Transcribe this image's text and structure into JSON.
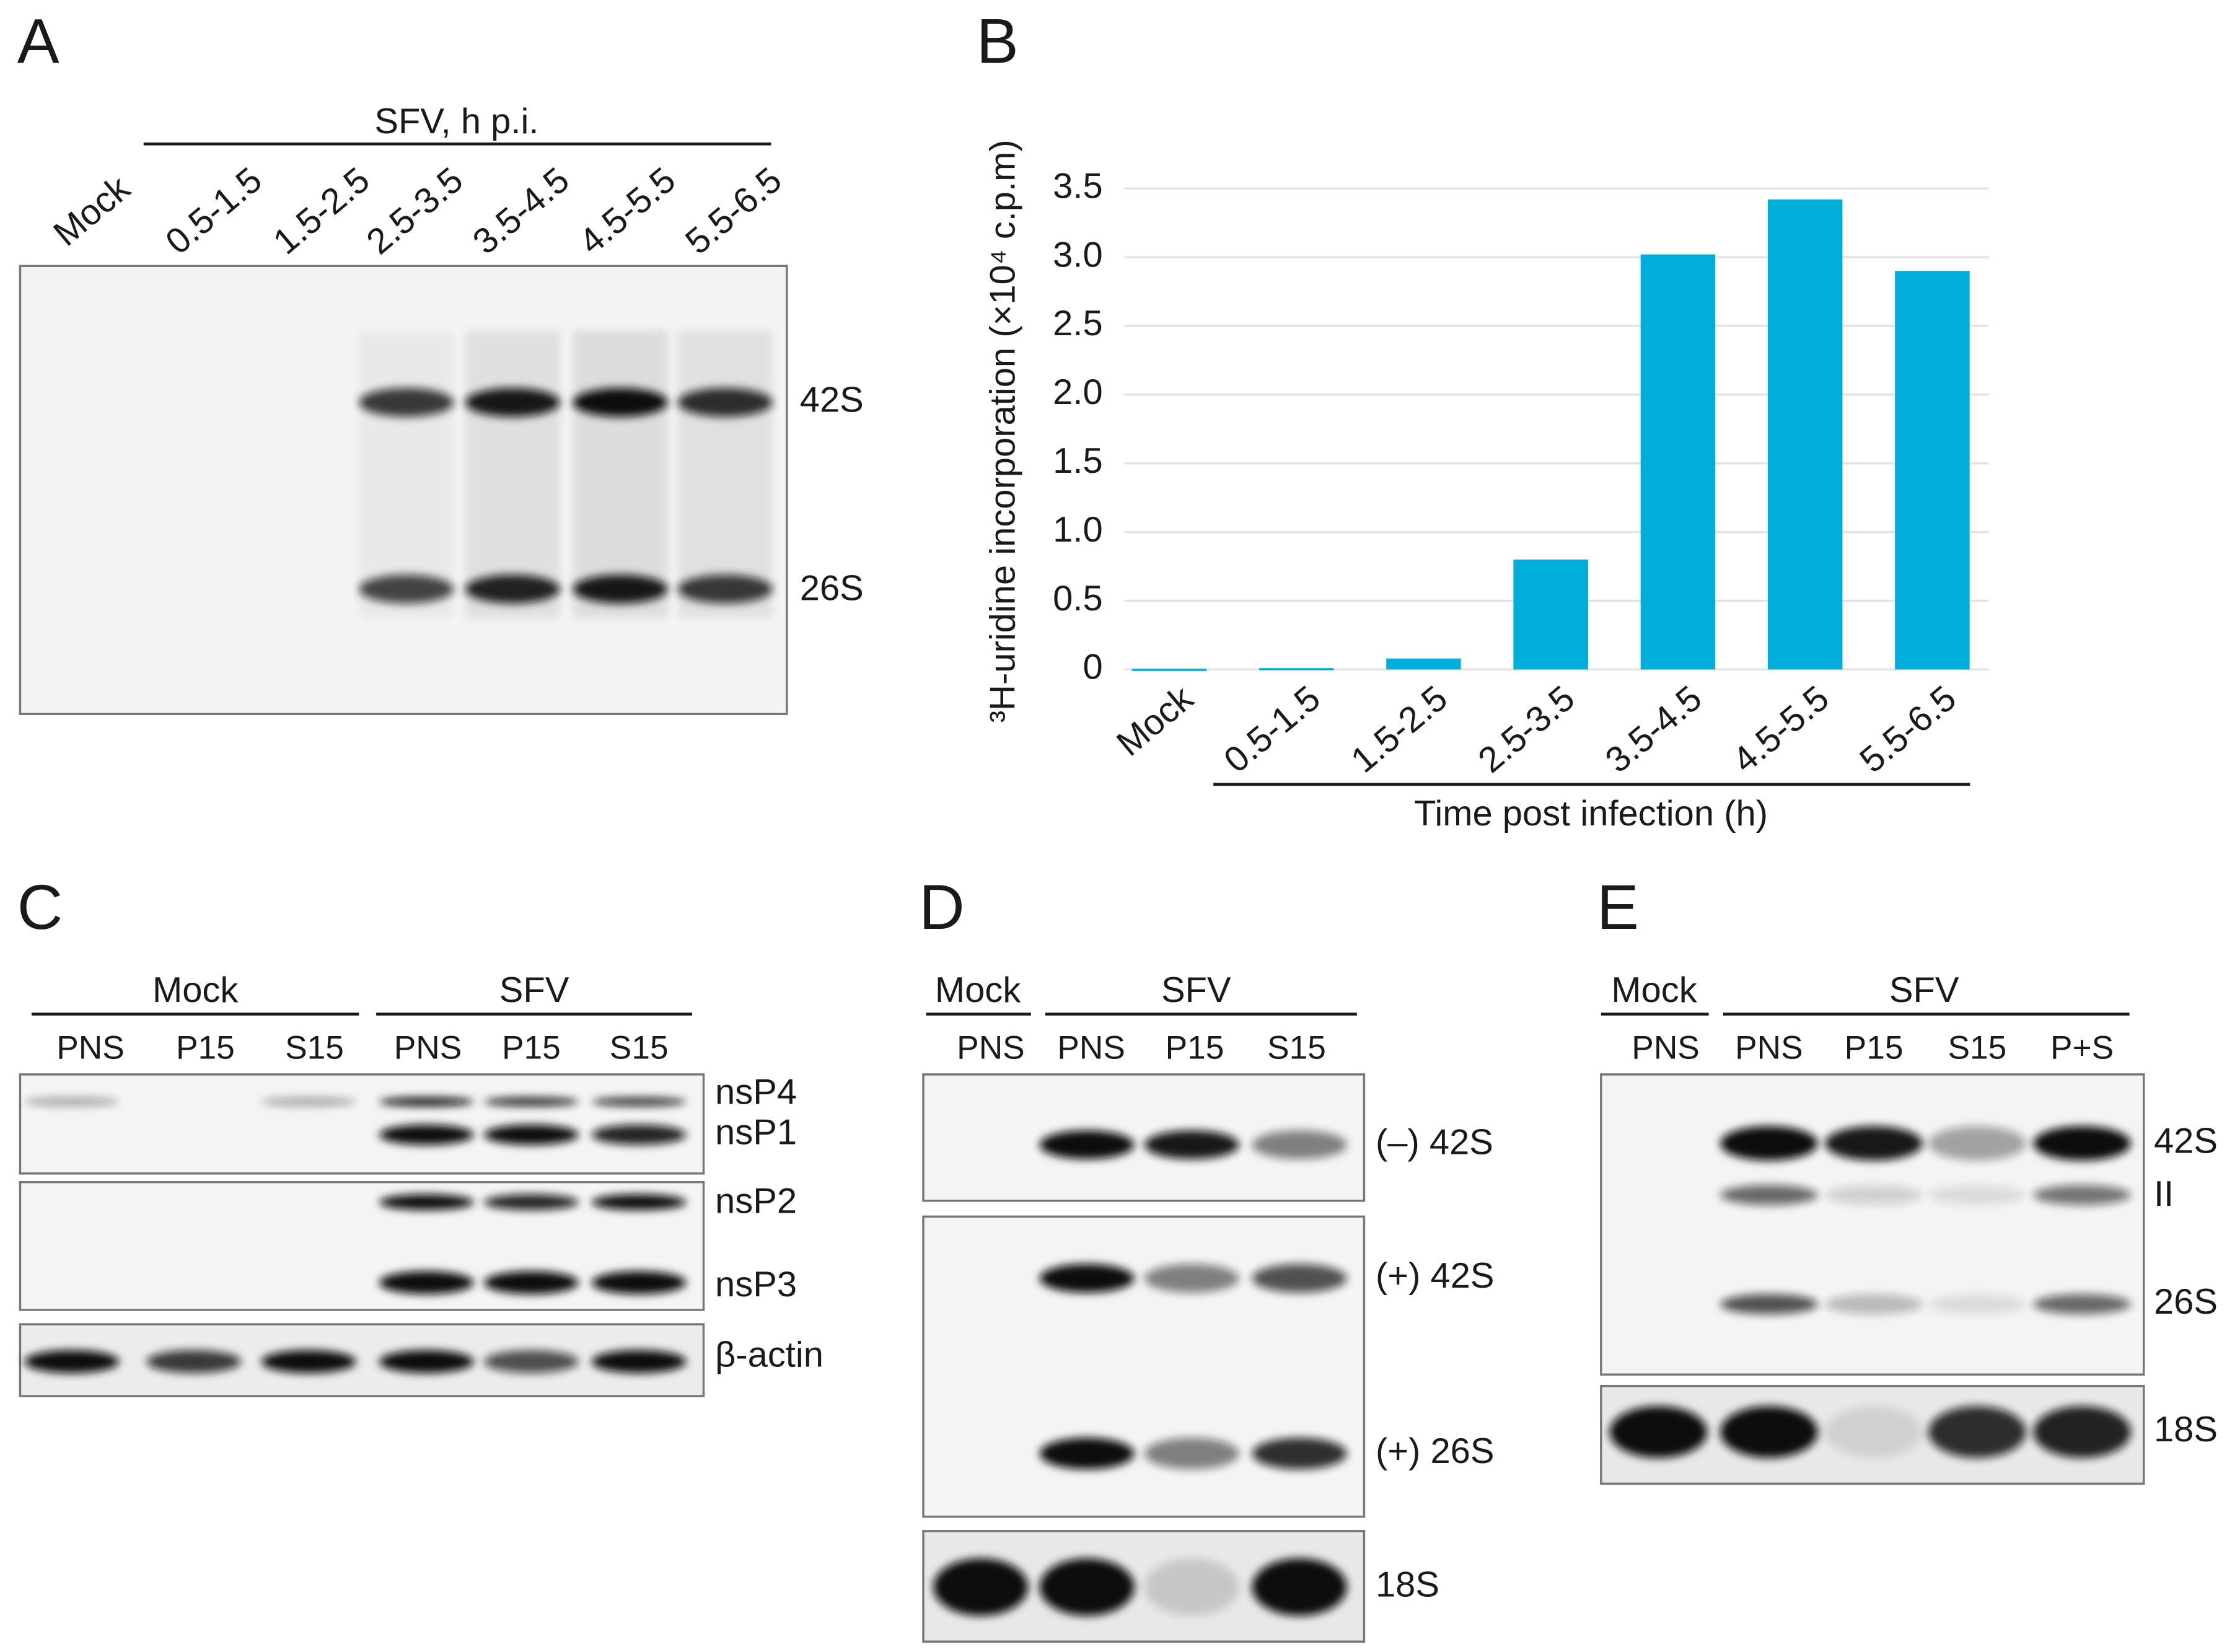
{
  "panel_a": {
    "letter": "A",
    "group": "SFV, h p.i.",
    "lanes": [
      "Mock",
      "0.5-1.5",
      "1.5-2.5",
      "2.5-3.5",
      "3.5-4.5",
      "4.5-5.5",
      "5.5-6.5"
    ],
    "bands": [
      "42S",
      "26S"
    ]
  },
  "chart_data": {
    "type": "bar",
    "letter": "B",
    "y_label": "³H-uridine incorporation (×10⁴ c.p.m)",
    "x_label": "Time post infection (h)",
    "categories": [
      "Mock",
      "0.5-1.5",
      "1.5-2.5",
      "2.5-3.5",
      "3.5-4.5",
      "4.5-5.5",
      "5.5-6.5"
    ],
    "values": [
      0.005,
      0.01,
      0.08,
      0.8,
      3.02,
      3.42,
      2.9
    ],
    "color": "#00aedb",
    "ylim": [
      0,
      3.5
    ],
    "yticks": [
      0,
      0.5,
      {
        "value": 1,
        "label": "1.0"
      },
      1.5,
      {
        "value": 2,
        "label": "2.0"
      },
      2.5,
      {
        "value": 3,
        "label": "3.0"
      },
      3.5
    ],
    "grid": true
  },
  "panel_c": {
    "letter": "C",
    "groups": [
      "Mock",
      "SFV"
    ],
    "lanes": [
      "PNS",
      "P15",
      "S15",
      "PNS",
      "P15",
      "S15"
    ],
    "bands": [
      "nsP4",
      "nsP1",
      "nsP2",
      "nsP3",
      "β-actin"
    ]
  },
  "panel_d": {
    "letter": "D",
    "groups": [
      "Mock",
      "SFV"
    ],
    "lanes": [
      "PNS",
      "PNS",
      "P15",
      "S15"
    ],
    "bands": [
      "(–) 42S",
      "(+) 42S",
      "(+) 26S",
      "18S"
    ]
  },
  "panel_e": {
    "letter": "E",
    "groups": [
      "Mock",
      "SFV"
    ],
    "lanes": [
      "PNS",
      "PNS",
      "P15",
      "S15",
      "P+S"
    ],
    "bands": [
      "42S",
      "II",
      "26S",
      "18S"
    ]
  }
}
